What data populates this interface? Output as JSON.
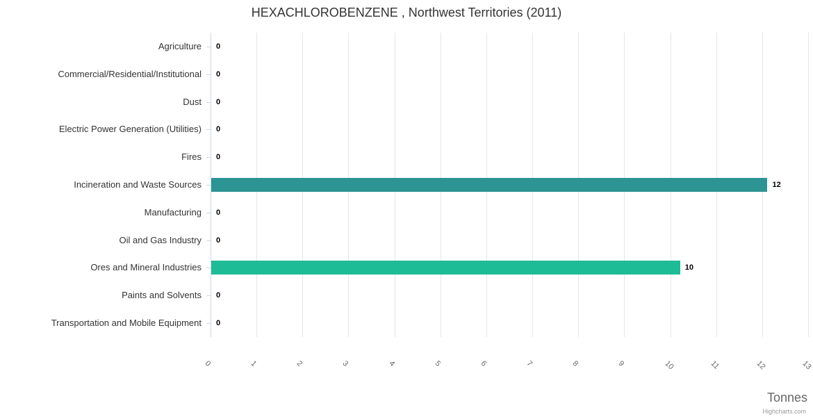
{
  "header": {
    "title": "HEXACHLOROBENZENE , Northwest Territories (2011)"
  },
  "chart_data": {
    "type": "bar",
    "orientation": "horizontal",
    "title": "HEXACHLOROBENZENE , Northwest Territories (2011)",
    "categories": [
      "Agriculture",
      "Commercial/Residential/Institutional",
      "Dust",
      "Electric Power Generation (Utilities)",
      "Fires",
      "Incineration and Waste Sources",
      "Manufacturing",
      "Oil and Gas Industry",
      "Ores and Mineral Industries",
      "Paints and Solvents",
      "Transportation and Mobile Equipment"
    ],
    "values": [
      0,
      0,
      0,
      0,
      0,
      12.1,
      0,
      0,
      10.2,
      0,
      0
    ],
    "value_labels": [
      "0",
      "0",
      "0",
      "0",
      "0",
      "12",
      "0",
      "0",
      "10",
      "0",
      "0"
    ],
    "bar_colors": [
      null,
      null,
      null,
      null,
      null,
      "#2D9494",
      null,
      null,
      "#1DBC96",
      null,
      null
    ],
    "xlabel": "Tonnes",
    "ylabel": "",
    "xlim": [
      0,
      13
    ],
    "x_ticks": [
      "0",
      "1",
      "2",
      "3",
      "4",
      "5",
      "6",
      "7",
      "8",
      "9",
      "10",
      "11",
      "12",
      "13"
    ],
    "grid": true,
    "legend": false
  },
  "colors": {
    "grid": "#e6e6e6",
    "axis_line": "#ccd6eb",
    "tick": "#ccd6eb",
    "bar_teal": "#2D9494",
    "bar_green": "#1DBC96",
    "title_text": "#333333",
    "category_text": "#333333",
    "axis_label_text": "#666666",
    "data_label_text": "#000000",
    "credit_text": "#999999"
  },
  "credit": {
    "label": "Highcharts.com"
  }
}
